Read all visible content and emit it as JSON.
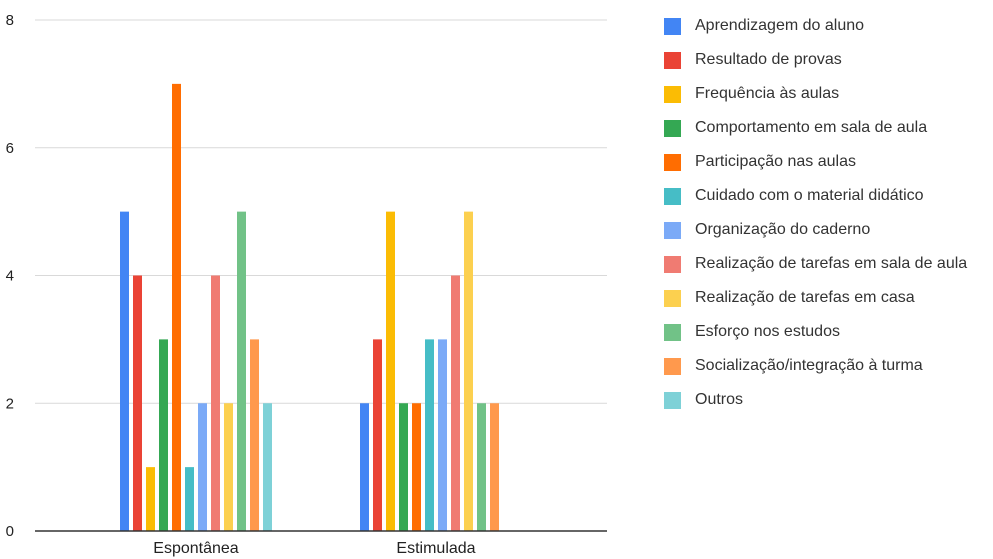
{
  "chart_data": {
    "type": "bar",
    "title": "",
    "xlabel": "",
    "ylabel": "",
    "ylim": [
      0,
      8
    ],
    "yticks": [
      0,
      2,
      4,
      6,
      8
    ],
    "grid": true,
    "legend_position": "right",
    "categories": [
      "Espontânea",
      "Estimulada"
    ],
    "series": [
      {
        "name": "Aprendizagem do aluno",
        "color": "#4285f4",
        "values": [
          5,
          2
        ]
      },
      {
        "name": "Resultado de provas",
        "color": "#ea4335",
        "values": [
          4,
          3
        ]
      },
      {
        "name": "Frequência às aulas",
        "color": "#fbbc04",
        "values": [
          1,
          5
        ]
      },
      {
        "name": "Comportamento em sala de aula",
        "color": "#34a853",
        "values": [
          3,
          2
        ]
      },
      {
        "name": "Participação nas aulas",
        "color": "#ff6d01",
        "values": [
          7,
          2
        ]
      },
      {
        "name": "Cuidado com o material didático",
        "color": "#46bdc6",
        "values": [
          1,
          3
        ]
      },
      {
        "name": "Organização do caderno",
        "color": "#7baaf7",
        "values": [
          2,
          3
        ]
      },
      {
        "name": "Realização de tarefas em sala de aula",
        "color": "#f07b72",
        "values": [
          4,
          4
        ]
      },
      {
        "name": "Realização de tarefas em casa",
        "color": "#fcd04f",
        "values": [
          2,
          5
        ]
      },
      {
        "name": "Esforço nos estudos",
        "color": "#71c287",
        "values": [
          5,
          2
        ]
      },
      {
        "name": "Socialização/integração à turma",
        "color": "#ff994d",
        "values": [
          3,
          2
        ]
      },
      {
        "name": "Outros",
        "color": "#7ed1d7",
        "values": [
          2,
          0
        ]
      }
    ]
  }
}
